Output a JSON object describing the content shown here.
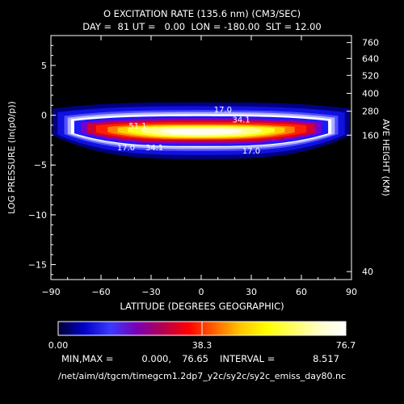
{
  "chart_data": {
    "type": "heatmap",
    "title_line1": "O EXCITATION RATE (135.6 nm) (CM3/SEC)",
    "title_line2": "DAY =  81 UT =   0.00  LON = -180.00  SLT = 12.00",
    "xlabel": "LATITUDE (DEGREES GEOGRAPHIC)",
    "ylabel": "LOG PRESSURE (ln(p0/p))",
    "y2label": "AVE HEIGHT (KM)",
    "xlim": [
      -90,
      90
    ],
    "ylim": [
      -16.5,
      8
    ],
    "x_ticks": [
      -90,
      -60,
      -30,
      0,
      30,
      60,
      90
    ],
    "x_tick_labels": [
      "−90",
      "−60",
      "−30",
      "0",
      "30",
      "60",
      "90"
    ],
    "y_ticks": [
      -15,
      -10,
      -5,
      0,
      5
    ],
    "y_tick_labels": [
      "−15",
      "−10",
      "−5",
      "0",
      "5"
    ],
    "height_ticks": [
      {
        "label": "760",
        "zp": 7.3
      },
      {
        "label": "640",
        "zp": 5.7
      },
      {
        "label": "520",
        "zp": 4.0
      },
      {
        "label": "400",
        "zp": 2.2
      },
      {
        "label": "280",
        "zp": 0.4
      },
      {
        "label": "160",
        "zp": -2.0
      },
      {
        "label": "40",
        "zp": -15.7
      }
    ],
    "contour_labels": [
      {
        "text": "17.0",
        "lat": 13,
        "zp": 0.6
      },
      {
        "text": "34.1",
        "lat": 24,
        "zp": -0.4
      },
      {
        "text": "51.1",
        "lat": -38,
        "zp": -1.0
      },
      {
        "text": "68.1",
        "lat": -13,
        "zp": -1.6
      },
      {
        "text": "17.0",
        "lat": -45,
        "zp": -3.2
      },
      {
        "text": "34.1",
        "lat": -28,
        "zp": -3.2
      },
      {
        "text": "17.0",
        "lat": 30,
        "zp": -3.5
      }
    ],
    "emission_layer": {
      "peak_zp": -1.6,
      "peak_value": 76.65,
      "edge_lats": [
        -88,
        88
      ]
    },
    "colorbar": {
      "min_label": "0.00",
      "mid_label": "38.3",
      "max_label": "76.7",
      "colors": [
        "#ffffff",
        "#000033",
        "#0000c8",
        "#3a3aff",
        "#7800b4",
        "#b40050",
        "#ff0000",
        "#ff6400",
        "#ffc800",
        "#ffff00",
        "#ffff64",
        "#ffffc8",
        "#ffffff"
      ]
    },
    "stats": {
      "minmax_label": "MIN,MAX =",
      "min": "0.000,",
      "max": "76.65",
      "interval_label": "INTERVAL =",
      "interval": "8.517"
    },
    "file_path": "/net/aim/d/tgcm/timegcm1.2dp7_y2c/sy2c/sy2c_emiss_day80.nc"
  }
}
